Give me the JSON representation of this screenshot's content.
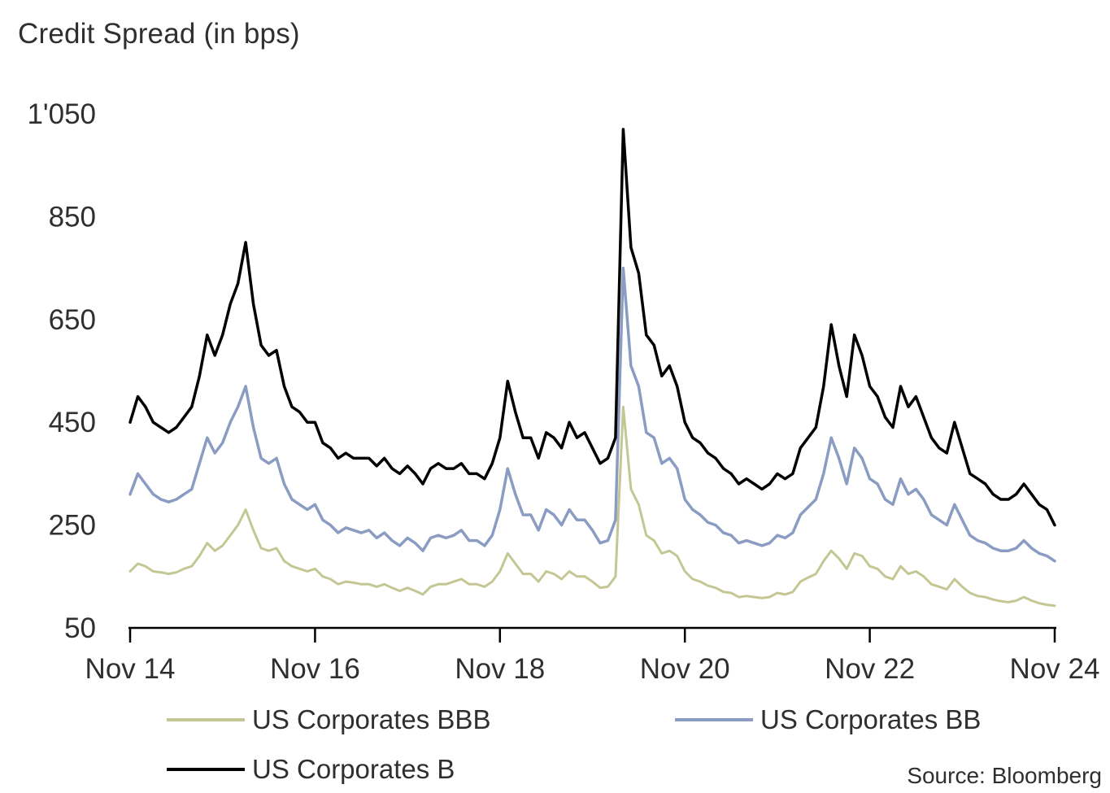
{
  "chart": {
    "title": "Credit Spread (in bps)",
    "source": "Source: Bloomberg"
  },
  "chart_data": {
    "type": "line",
    "title": "Credit Spread (in bps)",
    "source": "Source: Bloomberg",
    "x_description": "Monthly observations from Nov 2014 to Nov 2024 (index 0 = Nov 14)",
    "x_tick_labels": [
      "Nov 14",
      "Nov 16",
      "Nov 18",
      "Nov 20",
      "Nov 22",
      "Nov 24"
    ],
    "x_tick_positions": [
      0,
      24,
      48,
      72,
      96,
      120
    ],
    "y_ticks": [
      50,
      250,
      450,
      650,
      850,
      1050
    ],
    "y_tick_labels": [
      "50",
      "250",
      "450",
      "650",
      "850",
      "1'050"
    ],
    "ylim": [
      50,
      1050
    ],
    "ylabel": "Credit Spread (in bps)",
    "grid": false,
    "legend_position": "bottom",
    "series": [
      {
        "name": "US Corporates BBB",
        "color": "#c4c793",
        "line_width": 3,
        "values": [
          160,
          175,
          170,
          160,
          158,
          155,
          158,
          165,
          170,
          190,
          215,
          200,
          210,
          230,
          250,
          280,
          240,
          205,
          200,
          205,
          180,
          170,
          165,
          160,
          165,
          150,
          145,
          135,
          140,
          138,
          135,
          135,
          130,
          135,
          128,
          122,
          128,
          122,
          115,
          130,
          135,
          135,
          140,
          145,
          135,
          135,
          130,
          140,
          160,
          195,
          175,
          155,
          155,
          140,
          160,
          155,
          145,
          160,
          150,
          150,
          140,
          128,
          130,
          150,
          480,
          320,
          290,
          230,
          220,
          195,
          200,
          190,
          160,
          145,
          140,
          132,
          128,
          120,
          118,
          110,
          112,
          110,
          108,
          110,
          118,
          115,
          120,
          140,
          148,
          155,
          180,
          200,
          185,
          165,
          195,
          190,
          170,
          165,
          150,
          145,
          170,
          155,
          160,
          150,
          135,
          130,
          125,
          145,
          130,
          118,
          112,
          110,
          105,
          102,
          100,
          103,
          110,
          103,
          98,
          95,
          93
        ]
      },
      {
        "name": "US Corporates BB",
        "color": "#8b9cc3",
        "line_width": 3.5,
        "values": [
          310,
          350,
          330,
          310,
          300,
          295,
          300,
          310,
          320,
          370,
          420,
          390,
          410,
          450,
          480,
          520,
          440,
          380,
          370,
          380,
          330,
          300,
          290,
          280,
          290,
          260,
          250,
          235,
          245,
          240,
          235,
          240,
          225,
          235,
          220,
          210,
          225,
          215,
          200,
          225,
          230,
          225,
          230,
          240,
          220,
          220,
          210,
          230,
          280,
          360,
          310,
          270,
          270,
          240,
          280,
          270,
          250,
          280,
          260,
          260,
          240,
          215,
          220,
          260,
          750,
          560,
          520,
          430,
          420,
          370,
          380,
          360,
          300,
          280,
          270,
          255,
          250,
          235,
          230,
          215,
          220,
          215,
          210,
          215,
          230,
          225,
          235,
          270,
          285,
          300,
          350,
          420,
          380,
          330,
          400,
          380,
          340,
          330,
          300,
          290,
          340,
          310,
          320,
          300,
          270,
          260,
          250,
          290,
          260,
          230,
          220,
          215,
          205,
          200,
          200,
          205,
          220,
          205,
          195,
          190,
          180
        ]
      },
      {
        "name": "US Corporates B",
        "color": "#000000",
        "line_width": 3.5,
        "values": [
          450,
          500,
          480,
          450,
          440,
          430,
          440,
          460,
          480,
          540,
          620,
          580,
          620,
          680,
          720,
          800,
          680,
          600,
          580,
          590,
          520,
          480,
          470,
          450,
          450,
          410,
          400,
          380,
          390,
          380,
          380,
          380,
          365,
          380,
          360,
          350,
          365,
          350,
          330,
          360,
          370,
          360,
          360,
          370,
          350,
          350,
          340,
          370,
          420,
          530,
          470,
          420,
          420,
          380,
          430,
          420,
          400,
          450,
          420,
          430,
          400,
          370,
          380,
          420,
          1020,
          790,
          740,
          620,
          600,
          540,
          560,
          520,
          450,
          420,
          410,
          390,
          380,
          360,
          350,
          330,
          340,
          330,
          320,
          330,
          350,
          340,
          350,
          400,
          420,
          440,
          520,
          640,
          560,
          500,
          620,
          580,
          520,
          500,
          460,
          440,
          520,
          480,
          500,
          460,
          420,
          400,
          390,
          450,
          400,
          350,
          340,
          330,
          310,
          300,
          300,
          310,
          330,
          310,
          290,
          280,
          250
        ]
      }
    ]
  },
  "legend": {
    "items": [
      {
        "label": "US Corporates BBB"
      },
      {
        "label": "US Corporates BB"
      },
      {
        "label": "US Corporates B"
      }
    ]
  }
}
